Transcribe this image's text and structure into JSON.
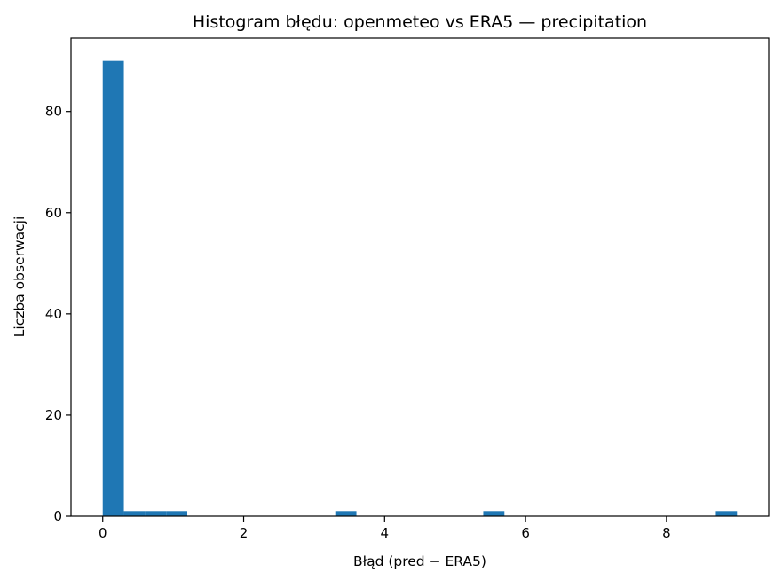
{
  "chart_data": {
    "type": "bar",
    "title": "Histogram błędu: openmeteo vs ERA5 — precipitation",
    "xlabel": "Błąd (pred − ERA5)",
    "ylabel": "Liczba obserwacji",
    "xlim": [
      -0.45,
      9.45
    ],
    "ylim": [
      0,
      94.5
    ],
    "xticks": [
      0,
      2,
      4,
      6,
      8
    ],
    "yticks": [
      0,
      20,
      40,
      60,
      80
    ],
    "grid": false,
    "bin_edges": [
      0,
      0.3,
      0.6,
      0.9,
      1.2,
      1.5,
      1.8,
      2.1,
      2.4,
      2.7,
      3.0,
      3.3,
      3.6,
      3.9,
      4.2,
      4.5,
      4.8,
      5.1,
      5.4,
      5.7,
      6.0,
      6.3,
      6.6,
      6.9,
      7.2,
      7.5,
      7.8,
      8.1,
      8.4,
      8.7,
      9.0
    ],
    "counts": [
      90,
      1,
      1,
      1,
      0,
      0,
      0,
      0,
      0,
      0,
      0,
      1,
      0,
      0,
      0,
      0,
      0,
      0,
      1,
      0,
      0,
      0,
      0,
      0,
      0,
      0,
      0,
      0,
      0,
      1
    ],
    "bar_color": "#1f77b4"
  }
}
